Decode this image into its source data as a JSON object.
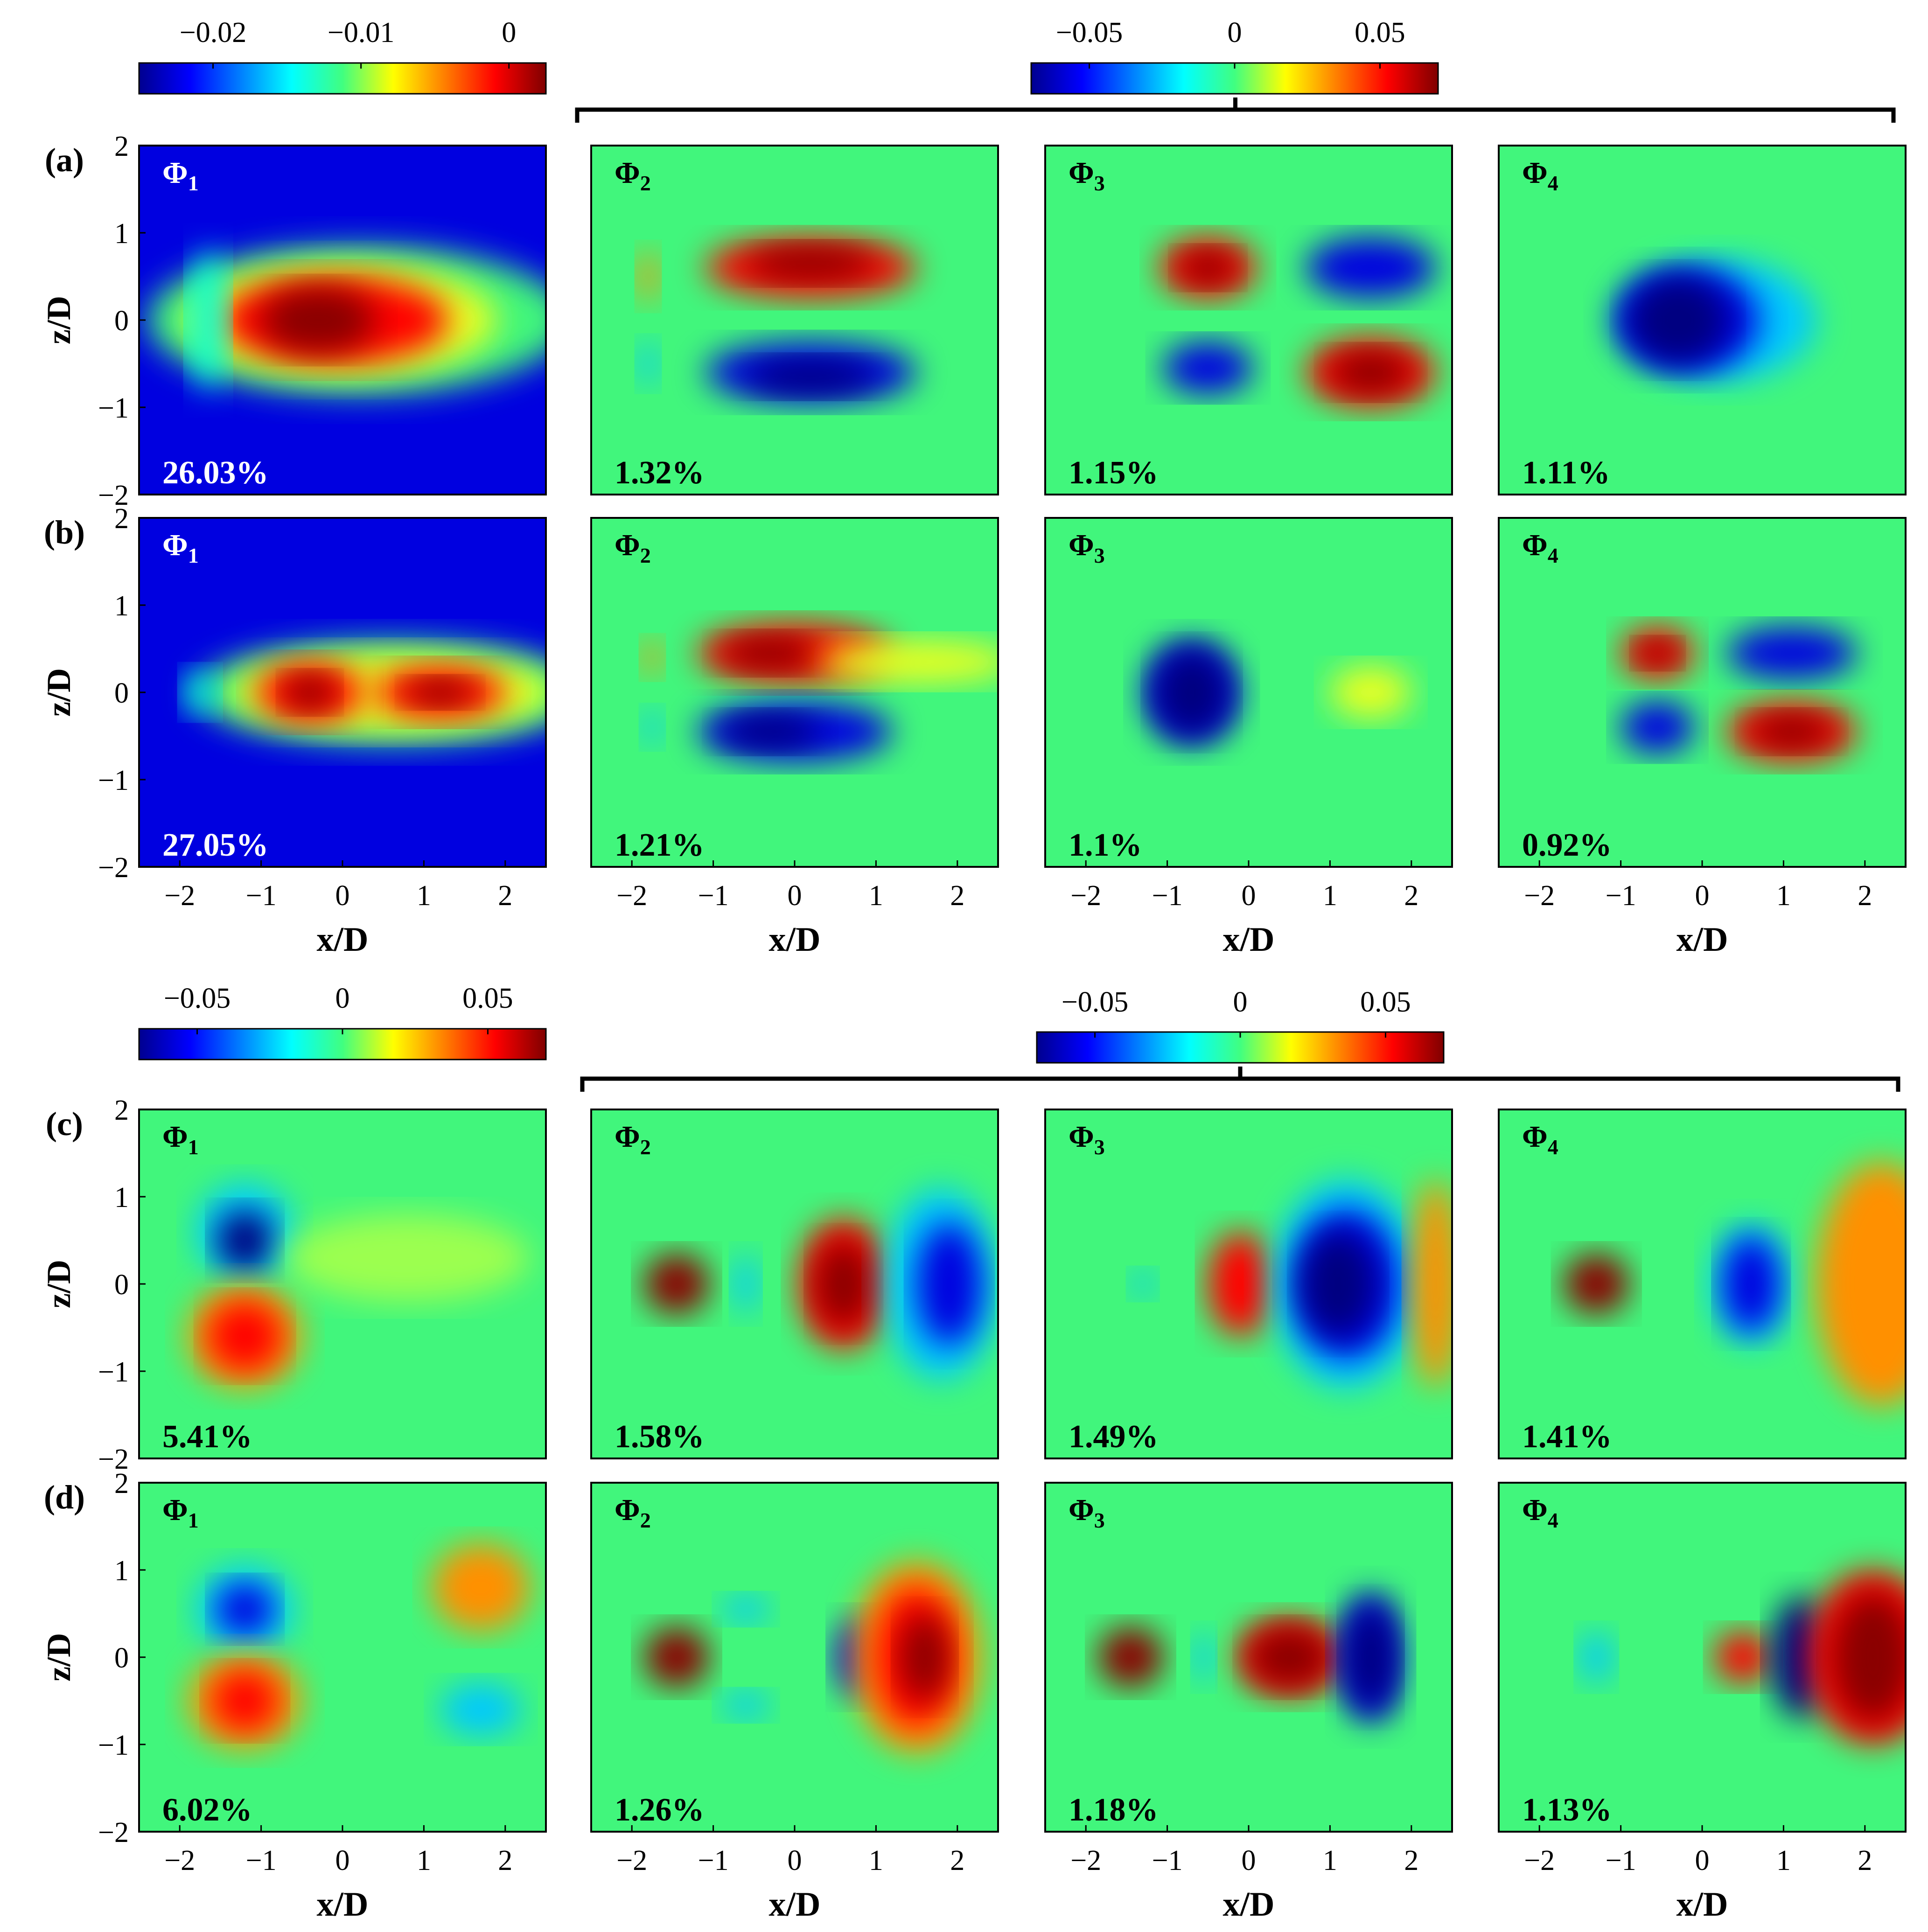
{
  "figure": {
    "x_label": "x/D",
    "z_label": "z/D",
    "x_ticks": [
      "−2",
      "−1",
      "0",
      "1",
      "2"
    ],
    "z_ticks": [
      "2",
      "1",
      "0",
      "−1",
      "−2"
    ],
    "x_range": [
      -2.5,
      2.5
    ],
    "z_range": [
      -2,
      2
    ]
  },
  "colorbars": [
    {
      "id": "cb-top-left",
      "ticks": [
        "−0.02",
        "−0.01",
        "0"
      ],
      "min": -0.025,
      "max": 0.0025
    },
    {
      "id": "cb-top-right",
      "ticks": [
        "−0.05",
        "0",
        "0.05"
      ],
      "min": -0.07,
      "max": 0.07
    },
    {
      "id": "cb-bottom-left",
      "ticks": [
        "−0.05",
        "0",
        "0.05"
      ],
      "min": -0.07,
      "max": 0.07
    },
    {
      "id": "cb-bottom-right",
      "ticks": [
        "−0.05",
        "0",
        "0.05"
      ],
      "min": -0.07,
      "max": 0.07
    }
  ],
  "colors": {
    "background": "#ffffff",
    "axes": "#000000",
    "label_light": "#ffffff",
    "label_dark": "#000000"
  },
  "chart_data": {
    "type": "heatmap",
    "title": "",
    "xlabel": "x/D",
    "ylabel": "z/D",
    "rows": [
      {
        "label": "(a)",
        "modes": [
          {
            "mode": "Φ",
            "sub": "1",
            "energy": "26.03%"
          },
          {
            "mode": "Φ",
            "sub": "2",
            "energy": "1.32%"
          },
          {
            "mode": "Φ",
            "sub": "3",
            "energy": "1.15%"
          },
          {
            "mode": "Φ",
            "sub": "4",
            "energy": "1.11%"
          }
        ]
      },
      {
        "label": "(b)",
        "modes": [
          {
            "mode": "Φ",
            "sub": "1",
            "energy": "27.05%"
          },
          {
            "mode": "Φ",
            "sub": "2",
            "energy": "1.21%"
          },
          {
            "mode": "Φ",
            "sub": "3",
            "energy": "1.1%"
          },
          {
            "mode": "Φ",
            "sub": "4",
            "energy": "0.92%"
          }
        ]
      },
      {
        "label": "(c)",
        "modes": [
          {
            "mode": "Φ",
            "sub": "1",
            "energy": "5.41%"
          },
          {
            "mode": "Φ",
            "sub": "2",
            "energy": "1.58%"
          },
          {
            "mode": "Φ",
            "sub": "3",
            "energy": "1.49%"
          },
          {
            "mode": "Φ",
            "sub": "4",
            "energy": "1.41%"
          }
        ]
      },
      {
        "label": "(d)",
        "modes": [
          {
            "mode": "Φ",
            "sub": "1",
            "energy": "6.02%"
          },
          {
            "mode": "Φ",
            "sub": "2",
            "energy": "1.26%"
          },
          {
            "mode": "Φ",
            "sub": "3",
            "energy": "1.18%"
          },
          {
            "mode": "Φ",
            "sub": "4",
            "energy": "1.13%"
          }
        ]
      }
    ]
  }
}
